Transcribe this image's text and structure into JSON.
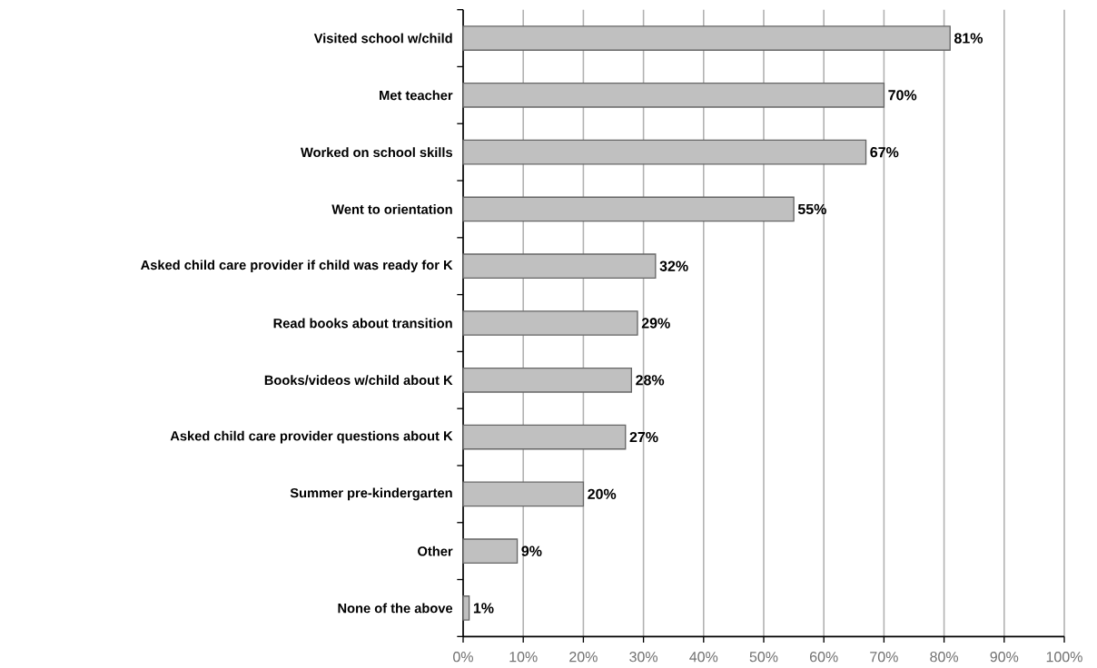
{
  "chart_data": {
    "type": "bar",
    "orientation": "horizontal",
    "categories": [
      "Visited school w/child",
      "Met teacher",
      "Worked on school skills",
      "Went to orientation",
      "Asked child care provider if child was ready for K",
      "Read books about transition",
      "Books/videos w/child about K",
      "Asked child care provider questions about K",
      "Summer pre-kindergarten",
      "Other",
      "None of the above"
    ],
    "values": [
      81,
      70,
      67,
      55,
      32,
      29,
      28,
      27,
      20,
      9,
      1
    ],
    "value_labels": [
      "81%",
      "70%",
      "67%",
      "55%",
      "32%",
      "29%",
      "28%",
      "27%",
      "20%",
      "9%",
      "1%"
    ],
    "color": "#c0c0c0",
    "xlim": [
      0,
      100
    ],
    "xticks": [
      {
        "value": 0,
        "label": "0%"
      },
      {
        "value": 10,
        "label": "10%"
      },
      {
        "value": 20,
        "label": "20%"
      },
      {
        "value": 30,
        "label": "30%"
      },
      {
        "value": 40,
        "label": "40%"
      },
      {
        "value": 50,
        "label": "50%"
      },
      {
        "value": 60,
        "label": "60%"
      },
      {
        "value": 70,
        "label": "70%"
      },
      {
        "value": 80,
        "label": "80%"
      },
      {
        "value": 90,
        "label": "90%"
      },
      {
        "value": 100,
        "label": "100%"
      }
    ],
    "grid": "x"
  }
}
